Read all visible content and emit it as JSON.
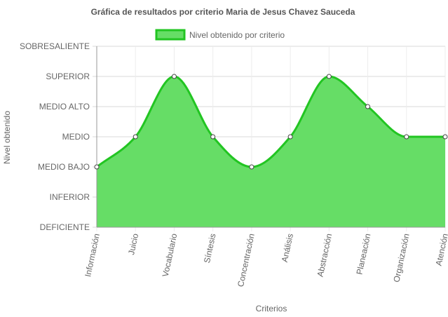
{
  "chart_data": {
    "type": "area",
    "title": "Gráfica de resultados por criterio Maria de Jesus Chavez Sauceda",
    "xlabel": "Criterios",
    "ylabel": "Nivel obtenido",
    "y_levels": [
      "DEFICIENTE",
      "INFERIOR",
      "MEDIO BAJO",
      "MEDIO",
      "MEDIO ALTO",
      "SUPERIOR",
      "SOBRESALIENTE"
    ],
    "ylim": [
      0,
      6
    ],
    "categories": [
      "Información",
      "Juicio",
      "Vocabulario",
      "Síntesis",
      "Concentración",
      "Análisis",
      "Abstracción",
      "Planeación",
      "Organización",
      "Atención"
    ],
    "series": [
      {
        "name": "Nivel obtenido por criterio",
        "values": [
          2,
          3,
          5,
          3,
          2,
          3,
          5,
          4,
          3,
          3
        ],
        "labels": [
          "MEDIO BAJO",
          "MEDIO",
          "SUPERIOR",
          "MEDIO",
          "MEDIO BAJO",
          "MEDIO",
          "SUPERIOR",
          "MEDIO ALTO",
          "MEDIO",
          "MEDIO"
        ]
      }
    ],
    "grid": true,
    "legend_position": "top-center",
    "colors": {
      "fill": "#66dd66",
      "stroke": "#22c522",
      "grid": "#d9d9d9",
      "axis": "#999999",
      "text": "#666666"
    }
  }
}
